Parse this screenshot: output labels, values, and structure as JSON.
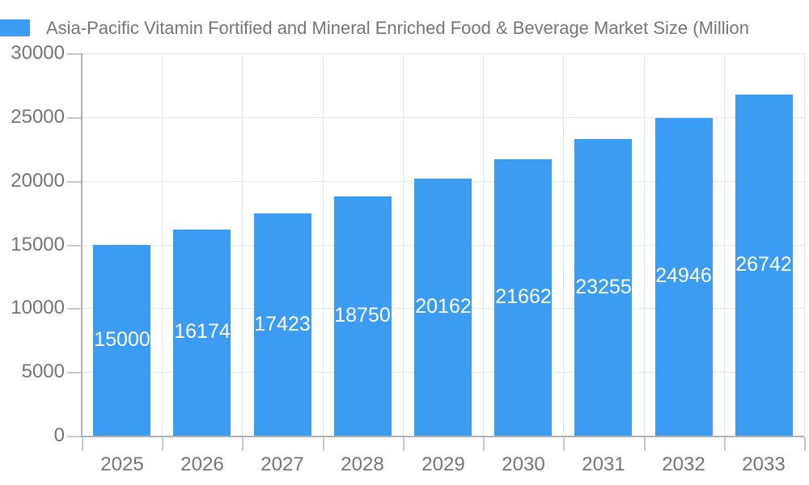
{
  "legend": {
    "swatch_color": "#3b9cf1",
    "label": "Asia-Pacific Vitamin Fortified and Mineral Enriched Food & Beverage Market Size (Million"
  },
  "chart_data": {
    "type": "bar",
    "title": "Asia-Pacific Vitamin Fortified and Mineral Enriched Food & Beverage Market Size (Million",
    "categories": [
      "2025",
      "2026",
      "2027",
      "2028",
      "2029",
      "2030",
      "2031",
      "2032",
      "2033"
    ],
    "values": [
      15000,
      16174,
      17423,
      18750,
      20162,
      21662,
      23255,
      24946,
      26742
    ],
    "value_labels": [
      "15000",
      "16174",
      "17423",
      "18750",
      "20162",
      "21662",
      "23255",
      "24946",
      "26742"
    ],
    "xlabel": "",
    "ylabel": "",
    "ylim": [
      0,
      30000
    ],
    "yticks": [
      0,
      5000,
      10000,
      15000,
      20000,
      25000,
      30000
    ],
    "grid": true,
    "legend_position": "top-left",
    "colors": {
      "bar": "#3b9cf1",
      "value_label": "#ffffff",
      "axis_text": "#757575",
      "gridline": "#e6e6e6",
      "axis_line": "#b0b0b0",
      "tick": "#c9c9c9",
      "background": "#ffffff"
    }
  }
}
